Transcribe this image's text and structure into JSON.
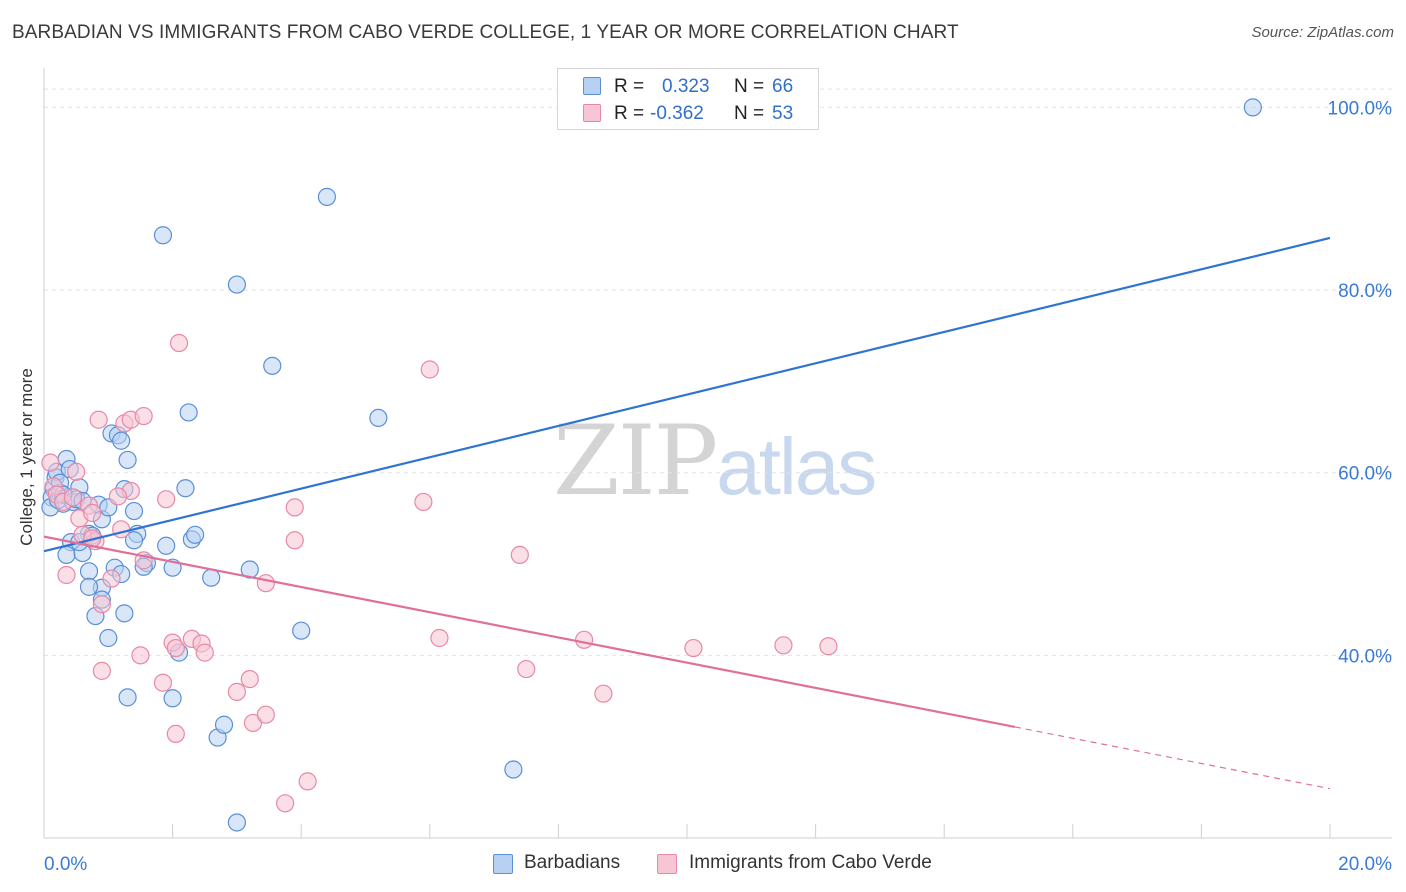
{
  "header": {
    "title": "BARBADIAN VS IMMIGRANTS FROM CABO VERDE COLLEGE, 1 YEAR OR MORE CORRELATION CHART",
    "source": "Source: ZipAtlas.com"
  },
  "watermark": {
    "zip": "ZIP",
    "atlas": "atlas"
  },
  "legend": {
    "r_label": "R =",
    "n_label": "N =",
    "series": [
      {
        "r": "0.323",
        "n": "66"
      },
      {
        "r": "-0.362",
        "n": "53"
      }
    ]
  },
  "bottom_legend": {
    "items": [
      {
        "label": "Barbadians"
      },
      {
        "label": "Immigrants from Cabo Verde"
      }
    ]
  },
  "colors": {
    "blue_fill": "#b8d1f3",
    "blue_stroke": "#5b8fd6",
    "blue_line": "#2f74d0",
    "pink_fill": "#f7c5d4",
    "pink_stroke": "#e888a6",
    "pink_line": "#e0709a",
    "axis_text": "#3a7bd5",
    "grid": "#e2e2e2"
  },
  "chart_data": {
    "type": "scatter",
    "title": "BARBADIAN VS IMMIGRANTS FROM CABO VERDE COLLEGE, 1 YEAR OR MORE CORRELATION CHART",
    "xlabel": "",
    "ylabel": "College, 1 year or more",
    "xlim": [
      0,
      20
    ],
    "ylim": [
      20,
      103
    ],
    "x_tick_labels": [
      "0.0%",
      "20.0%"
    ],
    "y_ticks": [
      40,
      60,
      80,
      100
    ],
    "y_tick_labels": [
      "40.0%",
      "60.0%",
      "80.0%",
      "100.0%"
    ],
    "series": [
      {
        "name": "Barbadians",
        "r": 0.323,
        "n": 66,
        "trend": {
          "x": [
            0,
            20
          ],
          "y": [
            51.4,
            85.7
          ],
          "dashed_from_x": null
        },
        "points": [
          [
            0.15,
            58.2
          ],
          [
            0.12,
            57.3
          ],
          [
            0.18,
            59.5
          ],
          [
            0.2,
            60.1
          ],
          [
            0.25,
            57.8
          ],
          [
            0.3,
            56.6
          ],
          [
            0.1,
            56.2
          ],
          [
            0.22,
            57.0
          ],
          [
            0.35,
            61.5
          ],
          [
            0.4,
            60.4
          ],
          [
            0.45,
            56.8
          ],
          [
            0.55,
            58.4
          ],
          [
            0.5,
            57.1
          ],
          [
            0.6,
            56.9
          ],
          [
            0.42,
            52.4
          ],
          [
            0.35,
            51.0
          ],
          [
            0.6,
            51.2
          ],
          [
            0.7,
            53.3
          ],
          [
            0.75,
            53.1
          ],
          [
            0.85,
            56.5
          ],
          [
            0.9,
            54.9
          ],
          [
            1.0,
            56.2
          ],
          [
            1.05,
            64.3
          ],
          [
            1.15,
            64.1
          ],
          [
            1.2,
            63.5
          ],
          [
            1.3,
            61.4
          ],
          [
            1.25,
            58.2
          ],
          [
            1.4,
            55.8
          ],
          [
            1.45,
            53.3
          ],
          [
            1.4,
            52.6
          ],
          [
            0.7,
            49.2
          ],
          [
            0.9,
            47.4
          ],
          [
            0.7,
            47.5
          ],
          [
            1.1,
            49.6
          ],
          [
            1.2,
            48.9
          ],
          [
            1.6,
            50.1
          ],
          [
            1.55,
            49.7
          ],
          [
            1.9,
            52.0
          ],
          [
            2.0,
            49.6
          ],
          [
            2.2,
            58.3
          ],
          [
            2.25,
            66.6
          ],
          [
            2.3,
            52.7
          ],
          [
            2.35,
            53.2
          ],
          [
            2.6,
            48.5
          ],
          [
            0.8,
            44.3
          ],
          [
            1.25,
            44.6
          ],
          [
            1.0,
            41.9
          ],
          [
            1.3,
            35.4
          ],
          [
            2.0,
            35.3
          ],
          [
            2.1,
            40.3
          ],
          [
            2.7,
            31.0
          ],
          [
            2.8,
            32.4
          ],
          [
            3.2,
            49.4
          ],
          [
            3.55,
            71.7
          ],
          [
            4.0,
            42.7
          ],
          [
            5.2,
            66.0
          ],
          [
            3.0,
            80.6
          ],
          [
            1.85,
            86.0
          ],
          [
            4.4,
            90.2
          ],
          [
            7.3,
            27.5
          ],
          [
            3.0,
            21.7
          ],
          [
            18.8,
            100.0
          ],
          [
            0.25,
            58.9
          ],
          [
            0.3,
            57.6
          ],
          [
            0.55,
            52.4
          ],
          [
            0.9,
            46.1
          ]
        ]
      },
      {
        "name": "Immigrants from Cabo Verde",
        "r": -0.362,
        "n": 53,
        "trend": {
          "x": [
            0,
            20
          ],
          "y": [
            53.0,
            25.4
          ],
          "dashed_from_x": 15.1
        },
        "points": [
          [
            0.1,
            61.1
          ],
          [
            0.15,
            58.5
          ],
          [
            0.2,
            57.6
          ],
          [
            0.3,
            56.8
          ],
          [
            0.45,
            57.3
          ],
          [
            0.55,
            55.0
          ],
          [
            0.7,
            56.4
          ],
          [
            0.75,
            55.6
          ],
          [
            0.8,
            52.5
          ],
          [
            0.6,
            53.2
          ],
          [
            0.5,
            60.1
          ],
          [
            0.35,
            48.8
          ],
          [
            0.85,
            65.8
          ],
          [
            1.25,
            65.4
          ],
          [
            1.35,
            65.8
          ],
          [
            1.55,
            66.2
          ],
          [
            1.35,
            58.0
          ],
          [
            1.15,
            57.4
          ],
          [
            1.2,
            53.8
          ],
          [
            1.9,
            57.1
          ],
          [
            1.05,
            48.4
          ],
          [
            0.9,
            45.6
          ],
          [
            0.9,
            38.3
          ],
          [
            1.5,
            40.0
          ],
          [
            1.85,
            37.0
          ],
          [
            2.0,
            41.4
          ],
          [
            2.05,
            40.8
          ],
          [
            2.3,
            41.8
          ],
          [
            2.45,
            41.3
          ],
          [
            2.5,
            40.3
          ],
          [
            2.05,
            31.4
          ],
          [
            2.1,
            74.2
          ],
          [
            3.0,
            36.0
          ],
          [
            3.2,
            37.4
          ],
          [
            3.25,
            32.6
          ],
          [
            3.45,
            33.5
          ],
          [
            3.45,
            47.9
          ],
          [
            3.9,
            56.2
          ],
          [
            3.9,
            52.6
          ],
          [
            4.1,
            26.2
          ],
          [
            3.75,
            23.8
          ],
          [
            6.0,
            71.3
          ],
          [
            5.9,
            56.8
          ],
          [
            6.15,
            41.9
          ],
          [
            7.4,
            51.0
          ],
          [
            7.5,
            38.5
          ],
          [
            8.4,
            41.7
          ],
          [
            8.7,
            35.8
          ],
          [
            10.1,
            40.8
          ],
          [
            11.5,
            41.1
          ],
          [
            12.2,
            41.0
          ],
          [
            0.75,
            52.8
          ],
          [
            1.55,
            50.4
          ]
        ]
      }
    ]
  }
}
